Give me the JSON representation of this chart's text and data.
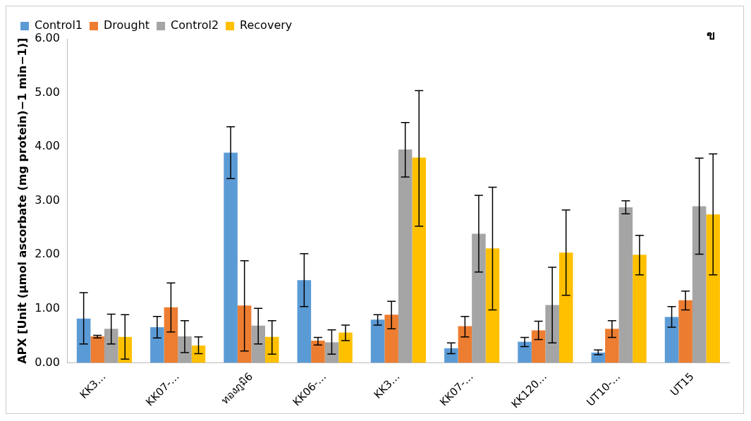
{
  "chart_data": {
    "type": "bar",
    "ylabel": "APX [Unit (µmol ascorbate (mg protein)−1 min−1)]",
    "categories": [
      "KK3…",
      "KK07-…",
      "ทองภูมิ6",
      "KK06-…",
      "KK3…",
      "KK07-…",
      "KK120…",
      "UT10-…",
      "UT15"
    ],
    "series": [
      {
        "name": "Control1",
        "color": "#5b9bd5",
        "values": [
          0.82,
          0.66,
          3.89,
          1.53,
          0.8,
          0.27,
          0.39,
          0.19,
          0.85
        ],
        "errors": [
          [
            0.35,
            1.3
          ],
          [
            0.46,
            0.86
          ],
          [
            3.41,
            4.37
          ],
          [
            1.04,
            2.02
          ],
          [
            0.7,
            0.89
          ],
          [
            0.17,
            0.37
          ],
          [
            0.3,
            0.47
          ],
          [
            0.15,
            0.24
          ],
          [
            0.66,
            1.04
          ]
        ]
      },
      {
        "name": "Drought",
        "color": "#ed7d31",
        "values": [
          0.49,
          1.03,
          1.06,
          0.41,
          0.89,
          0.68,
          0.6,
          0.63,
          1.16
        ],
        "errors": [
          [
            0.46,
            0.51
          ],
          [
            0.57,
            1.48
          ],
          [
            0.22,
            1.89
          ],
          [
            0.33,
            0.47
          ],
          [
            0.63,
            1.14
          ],
          [
            0.48,
            0.86
          ],
          [
            0.43,
            0.77
          ],
          [
            0.47,
            0.78
          ],
          [
            0.98,
            1.33
          ]
        ]
      },
      {
        "name": "Control2",
        "color": "#a5a5a5",
        "values": [
          0.63,
          0.49,
          0.69,
          0.38,
          3.95,
          2.39,
          1.07,
          2.88,
          2.9
        ],
        "errors": [
          [
            0.35,
            0.9
          ],
          [
            0.19,
            0.78
          ],
          [
            0.35,
            1.01
          ],
          [
            0.16,
            0.61
          ],
          [
            3.44,
            4.45
          ],
          [
            1.68,
            3.1
          ],
          [
            0.37,
            1.77
          ],
          [
            2.76,
            3.0
          ],
          [
            2.01,
            3.79
          ]
        ]
      },
      {
        "name": "Recovery",
        "color": "#ffc000",
        "values": [
          0.48,
          0.32,
          0.48,
          0.56,
          3.8,
          2.12,
          2.04,
          2.0,
          2.75
        ],
        "errors": [
          [
            0.07,
            0.89
          ],
          [
            0.17,
            0.48
          ],
          [
            0.16,
            0.78
          ],
          [
            0.41,
            0.7
          ],
          [
            2.53,
            5.04
          ],
          [
            0.98,
            3.25
          ],
          [
            1.25,
            2.83
          ],
          [
            1.63,
            2.36
          ],
          [
            1.63,
            3.87
          ]
        ]
      }
    ],
    "ylim": [
      0,
      6
    ],
    "yticks": [
      {
        "value": 0,
        "label": "0.00"
      },
      {
        "value": 1,
        "label": "1.00"
      },
      {
        "value": 2,
        "label": "2.00"
      },
      {
        "value": 3,
        "label": "3.00"
      },
      {
        "value": 4,
        "label": "4.00"
      },
      {
        "value": 5,
        "label": "5.00"
      },
      {
        "value": 6,
        "label": "6.00"
      }
    ],
    "grid": false,
    "legend": "top left",
    "annotations": [
      "ข"
    ]
  }
}
